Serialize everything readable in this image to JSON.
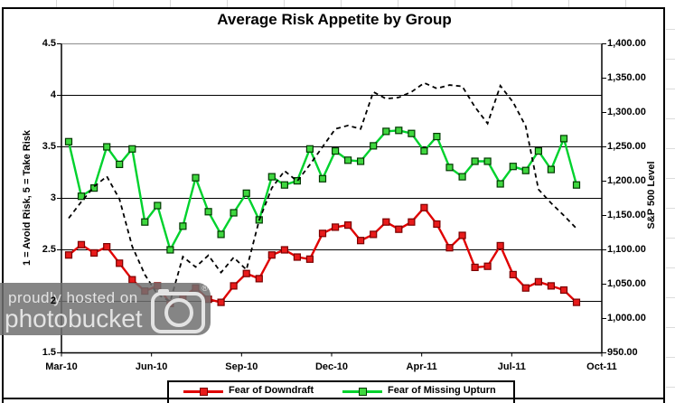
{
  "watermark": {
    "line1": "proudly hosted on",
    "line2": "photobucket",
    "registered": "®"
  },
  "chart_data": {
    "type": "line",
    "title": "Average Risk Appetite by Group",
    "grid": "horizontal-on",
    "legend_position": "bottom-center",
    "left_axis": {
      "label": "1 = Avoid Risk, 5 = Take Risk",
      "min": 1.5,
      "max": 4.5,
      "step": 0.5,
      "ticks": [
        "4.5",
        "4",
        "3.5",
        "3",
        "2.5",
        "2",
        "1.5"
      ]
    },
    "right_axis": {
      "label": "S&P 500 Level",
      "min": 950,
      "max": 1400,
      "step": 50,
      "ticks": [
        "1,400.00",
        "1,350.00",
        "1,300.00",
        "1,250.00",
        "1,200.00",
        "1,150.00",
        "1,100.00",
        "1,050.00",
        "1,000.00",
        "950.00"
      ]
    },
    "x_axis": {
      "ticks": [
        "Mar-10",
        "Jun-10",
        "Sep-10",
        "Dec-10",
        "Apr-11",
        "Jul-11",
        "Oct-11"
      ],
      "range_note": "semi-monthly observations Mar-2010 to Sep-2011"
    },
    "series": [
      {
        "name": "Fear of Downdraft",
        "axis": "left",
        "style": "solid",
        "color": "#e00000",
        "marker": "square",
        "marker_fill": "#e81b1b",
        "marker_stroke": "#7a0000",
        "values": [
          2.45,
          2.55,
          2.47,
          2.53,
          2.37,
          2.21,
          2.1,
          2.15,
          1.98,
          2.04,
          2.13,
          2.02,
          1.99,
          2.15,
          2.27,
          2.22,
          2.45,
          2.5,
          2.43,
          2.41,
          2.66,
          2.72,
          2.74,
          2.59,
          2.65,
          2.77,
          2.7,
          2.77,
          2.91,
          2.75,
          2.52,
          2.64,
          2.33,
          2.34,
          2.54,
          2.26,
          2.13,
          2.19,
          2.15,
          2.11,
          1.99
        ]
      },
      {
        "name": "Fear of Missing Upturn",
        "axis": "left",
        "style": "solid",
        "color": "#00d22d",
        "marker": "square",
        "marker_fill": "#3fd73f",
        "marker_stroke": "#003800",
        "values": [
          3.55,
          3.02,
          3.1,
          3.5,
          3.33,
          3.48,
          2.77,
          2.93,
          2.5,
          2.73,
          3.2,
          2.87,
          2.65,
          2.86,
          3.05,
          2.79,
          3.21,
          3.13,
          3.17,
          3.48,
          3.19,
          3.46,
          3.37,
          3.36,
          3.51,
          3.65,
          3.66,
          3.63,
          3.46,
          3.6,
          3.3,
          3.21,
          3.36,
          3.36,
          3.14,
          3.31,
          3.27,
          3.46,
          3.28,
          3.58,
          3.13
        ]
      },
      {
        "name": "S&P 500 Level",
        "axis": "right",
        "style": "dashed",
        "color": "#000000",
        "marker": "none",
        "values": [
          1146,
          1170,
          1192,
          1207,
          1174,
          1105,
          1064,
          1035,
          1025,
          1090,
          1075,
          1092,
          1067,
          1089,
          1071,
          1143,
          1190,
          1215,
          1200,
          1224,
          1250,
          1276,
          1281,
          1276,
          1330,
          1320,
          1322,
          1330,
          1343,
          1335,
          1340,
          1338,
          1308,
          1284,
          1339,
          1315,
          1280,
          1188,
          1168,
          1150,
          1131
        ]
      }
    ],
    "legend": [
      "Fear of Downdraft",
      "Fear of Missing Upturn"
    ]
  }
}
